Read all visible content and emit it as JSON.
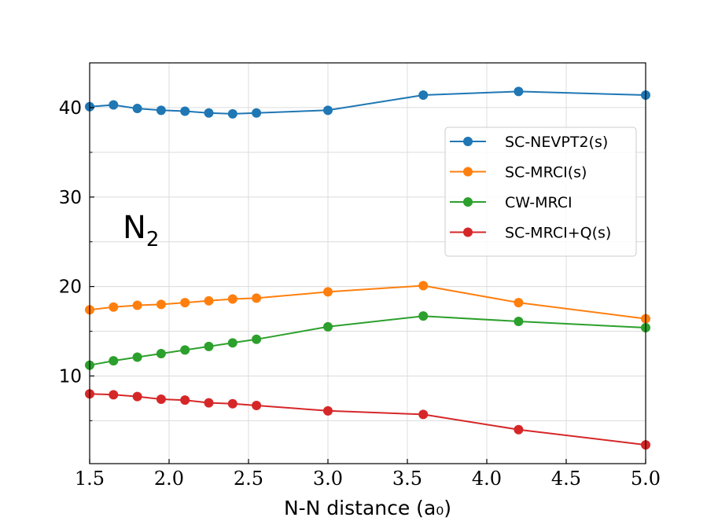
{
  "chart_data": {
    "type": "line",
    "title": "",
    "xlabel": "N-N distance (a₀)",
    "ylabel": "",
    "xlim": [
      1.5,
      5.0
    ],
    "ylim": [
      0.2,
      45
    ],
    "grid": true,
    "x_ticks": [
      1.5,
      2.0,
      2.5,
      3.0,
      3.5,
      4.0,
      4.5,
      5.0
    ],
    "x_tick_labels": [
      "1.5",
      "2.0",
      "2.5",
      "3.0",
      "3.5",
      "4.0",
      "4.5",
      "5.0"
    ],
    "y_ticks": [
      10,
      20,
      30,
      40
    ],
    "y_tick_labels": [
      "10",
      "20",
      "30",
      "40"
    ],
    "y_minor_ticks": [
      5,
      15,
      25,
      35
    ],
    "annotation": {
      "text": "N",
      "subscript": "2"
    },
    "legend_position": "upper-right",
    "x": [
      1.5,
      1.65,
      1.8,
      1.95,
      2.1,
      2.25,
      2.4,
      2.55,
      3.0,
      3.6,
      4.2,
      5.0
    ],
    "series": [
      {
        "name": "SC-NEVPT2(s)",
        "color": "#1f77b4",
        "values": [
          40.1,
          40.3,
          39.9,
          39.7,
          39.6,
          39.4,
          39.3,
          39.4,
          39.7,
          41.4,
          41.8,
          41.4
        ]
      },
      {
        "name": "SC-MRCI(s)",
        "color": "#ff7f0e",
        "values": [
          17.4,
          17.7,
          17.9,
          18.0,
          18.2,
          18.4,
          18.6,
          18.7,
          19.4,
          20.1,
          18.2,
          16.4
        ]
      },
      {
        "name": "CW-MRCI",
        "color": "#2ca02c",
        "values": [
          11.2,
          11.7,
          12.1,
          12.5,
          12.9,
          13.3,
          13.7,
          14.1,
          15.5,
          16.7,
          16.1,
          15.4
        ]
      },
      {
        "name": "SC-MRCI+Q(s)",
        "color": "#d62728",
        "values": [
          8.0,
          7.9,
          7.7,
          7.4,
          7.3,
          7.0,
          6.9,
          6.7,
          6.1,
          5.7,
          4.0,
          2.3
        ]
      }
    ]
  }
}
